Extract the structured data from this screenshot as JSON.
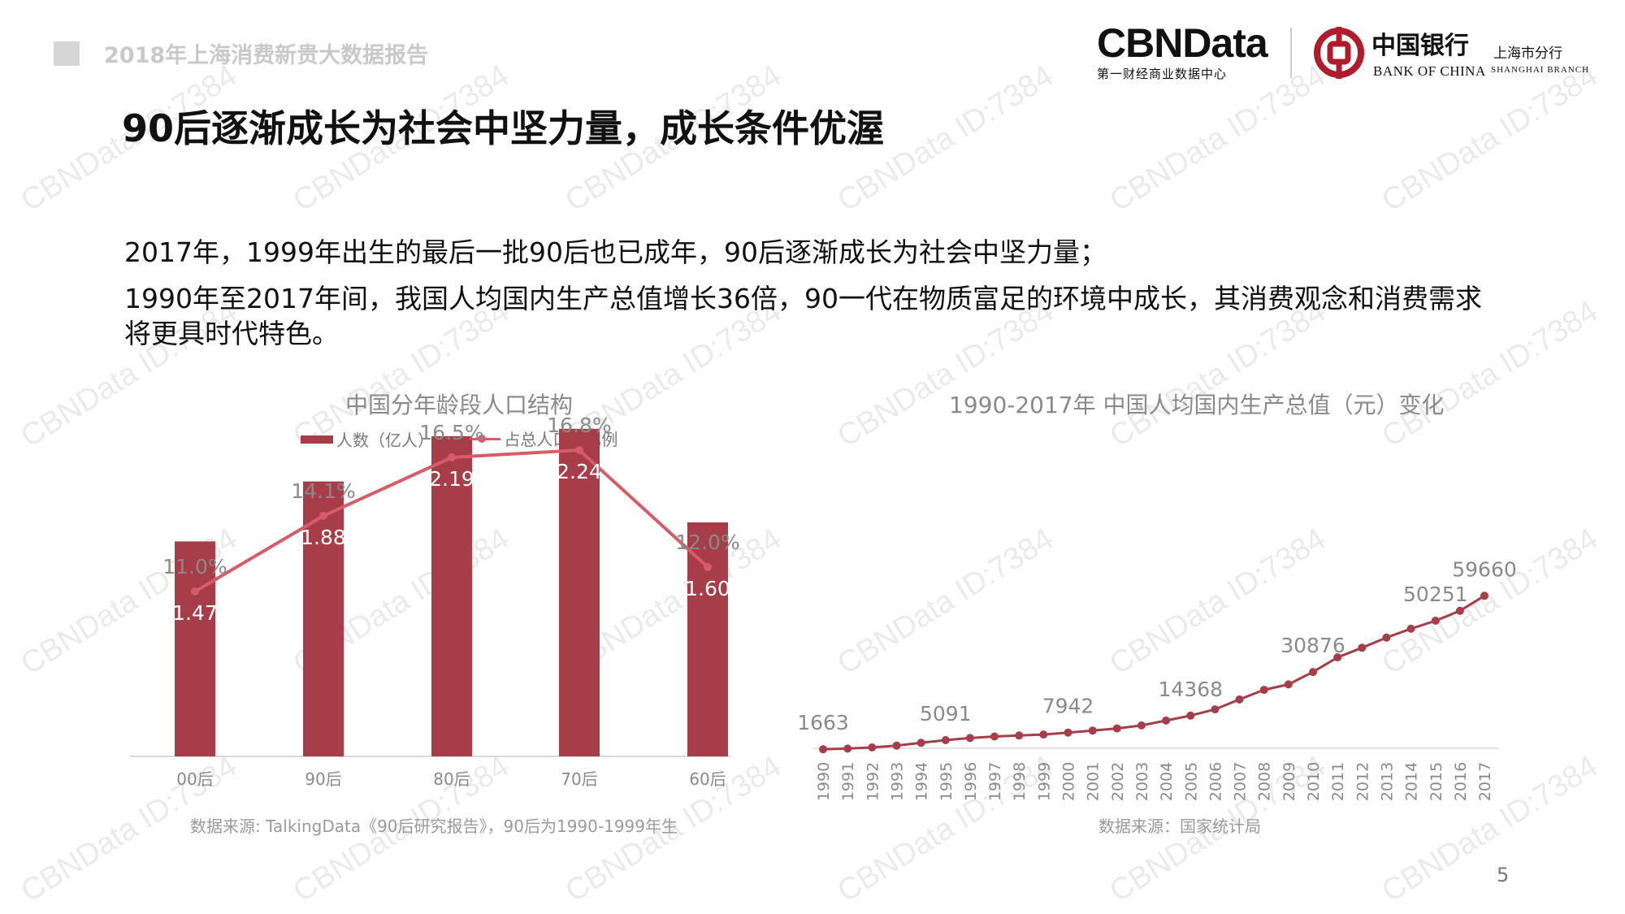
{
  "header": {
    "report_title": "2018年上海消费新贵大数据报告",
    "cbn_logo": "CBNData",
    "cbn_tagline": "第一财经商业数据中心",
    "boc_name_cn": "中国银行",
    "boc_name_en": "BANK OF CHINA",
    "boc_branch_cn": "上海市分行",
    "boc_branch_en": "SHANGHAI BRANCH"
  },
  "main_title": "90后逐渐成长为社会中坚力量，成长条件优渥",
  "paragraphs": [
    "2017年，1999年出生的最后一批90后也已成年，90后逐渐成长为社会中坚力量；",
    "1990年至2017年间，我国人均国内生产总值增长36倍，90一代在物质富足的环境中成长，其消费观念和消费需求",
    "将更具时代特色。"
  ],
  "watermark_text": "CBNData ID:7384",
  "page_number": "5",
  "colors": {
    "bar": "#a63d48",
    "line": "#d75c68",
    "gdp_line": "#a63d48"
  },
  "chart_data": [
    {
      "type": "bar",
      "title": "中国分年龄段人口结构",
      "categories": [
        "00后",
        "90后",
        "80后",
        "70后",
        "60后"
      ],
      "series": [
        {
          "name": "人数（亿人）",
          "type": "bar",
          "values": [
            1.47,
            1.88,
            2.19,
            2.24,
            1.6
          ],
          "labels": [
            "1.47",
            "1.88",
            "2.19",
            "2.24",
            "1.60"
          ]
        },
        {
          "name": "占总人口的比例",
          "type": "line",
          "values": [
            11.0,
            14.1,
            16.5,
            16.8,
            12.0
          ],
          "labels": [
            "11.0%",
            "14.1%",
            "16.5%",
            "16.8%",
            "12.0%"
          ]
        }
      ],
      "legend": "top",
      "grid": false,
      "source": "数据来源: TalkingData《90后研究报告》，90后为1990-1999年生"
    },
    {
      "type": "line",
      "title": "1990-2017年 中国人均国内生产总值（元）变化",
      "x": [
        "1990",
        "1991",
        "1992",
        "1993",
        "1994",
        "1995",
        "1996",
        "1997",
        "1998",
        "1999",
        "2000",
        "2001",
        "2002",
        "2003",
        "2004",
        "2005",
        "2006",
        "2007",
        "2008",
        "2009",
        "2010",
        "2011",
        "2012",
        "2013",
        "2014",
        "2015",
        "2016",
        "2017"
      ],
      "values": [
        1663,
        1912,
        2334,
        3027,
        4081,
        5091,
        5898,
        6481,
        6860,
        7229,
        7942,
        8717,
        9506,
        10666,
        12487,
        14368,
        16738,
        20494,
        24100,
        26180,
        30876,
        36403,
        40007,
        43852,
        47203,
        50251,
        53980,
        59660
      ],
      "labeled_points": {
        "1990": "1663",
        "1995": "5091",
        "2000": "7942",
        "2005": "14368",
        "2010": "30876",
        "2015": "50251",
        "2017": "59660"
      },
      "grid": false,
      "source": "数据来源：国家统计局"
    }
  ]
}
